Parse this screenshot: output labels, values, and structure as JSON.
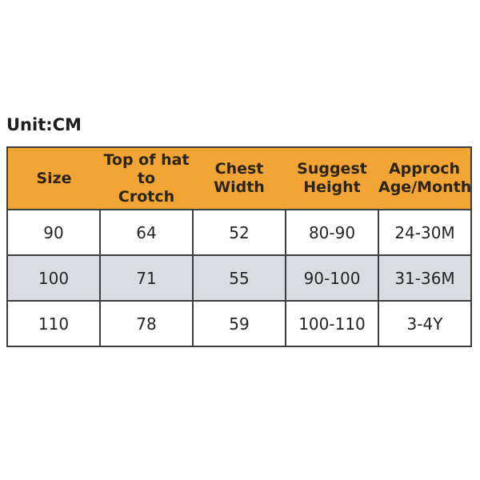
{
  "page": {
    "unit_label": "Unit:CM"
  },
  "colors": {
    "header_bg": "#f2a434",
    "header_text": "#2c2415",
    "alt_row_bg": "#d9dde2",
    "border": "#3e3e3e",
    "cell_text": "#242424",
    "page_bg": "#ffffff"
  },
  "table": {
    "header_lines": [
      [
        "Size"
      ],
      [
        "Top of hat to",
        "Crotch"
      ],
      [
        "Chest",
        "Width"
      ],
      [
        "Suggest",
        "Height"
      ],
      [
        "Approch",
        "Age/Month"
      ]
    ]
  },
  "chart_data": {
    "type": "table",
    "title": "Unit:CM",
    "columns": [
      "Size",
      "Top of hat to Crotch",
      "Chest Width",
      "Suggest Height",
      "Approch Age/Month"
    ],
    "rows": [
      [
        "90",
        "64",
        "52",
        "80-90",
        "24-30M"
      ],
      [
        "100",
        "71",
        "55",
        "90-100",
        "31-36M"
      ],
      [
        "110",
        "78",
        "59",
        "100-110",
        "3-4Y"
      ]
    ]
  }
}
